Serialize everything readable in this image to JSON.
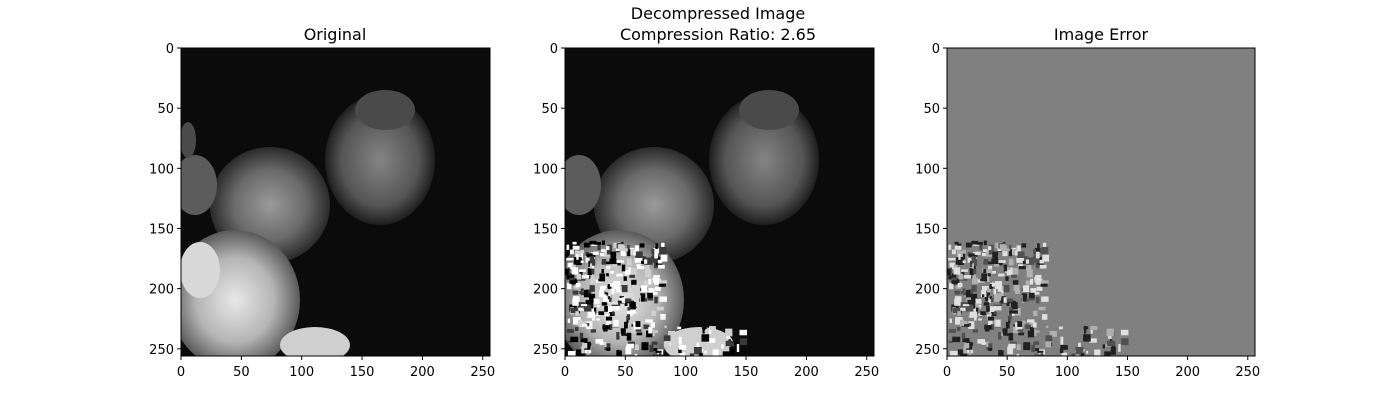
{
  "chart_data": [
    {
      "type": "heatmap",
      "title": "Original",
      "title_lines": [
        "Original"
      ],
      "xlim": [
        0,
        256
      ],
      "ylim": [
        256,
        0
      ],
      "xticks": [
        0,
        50,
        100,
        150,
        200,
        250
      ],
      "yticks": [
        0,
        50,
        100,
        150,
        200,
        250
      ],
      "colormap": "gray",
      "background_color": "#0b0b0b"
    },
    {
      "type": "heatmap",
      "title": "Decompressed Image\nCompression Ratio: 2.65",
      "title_lines": [
        "Decompressed Image",
        "Compression Ratio: 2.65"
      ],
      "compression_ratio": 2.65,
      "xlim": [
        0,
        256
      ],
      "ylim": [
        256,
        0
      ],
      "xticks": [
        0,
        50,
        100,
        150,
        200,
        250
      ],
      "yticks": [
        0,
        50,
        100,
        150,
        200,
        250
      ],
      "colormap": "gray",
      "background_color": "#0b0b0b"
    },
    {
      "type": "heatmap",
      "title": "Image Error",
      "title_lines": [
        "Image Error"
      ],
      "xlim": [
        0,
        256
      ],
      "ylim": [
        256,
        0
      ],
      "xticks": [
        0,
        50,
        100,
        150,
        200,
        250
      ],
      "yticks": [
        0,
        50,
        100,
        150,
        200,
        250
      ],
      "colormap": "gray",
      "background_color": "#808080"
    }
  ]
}
